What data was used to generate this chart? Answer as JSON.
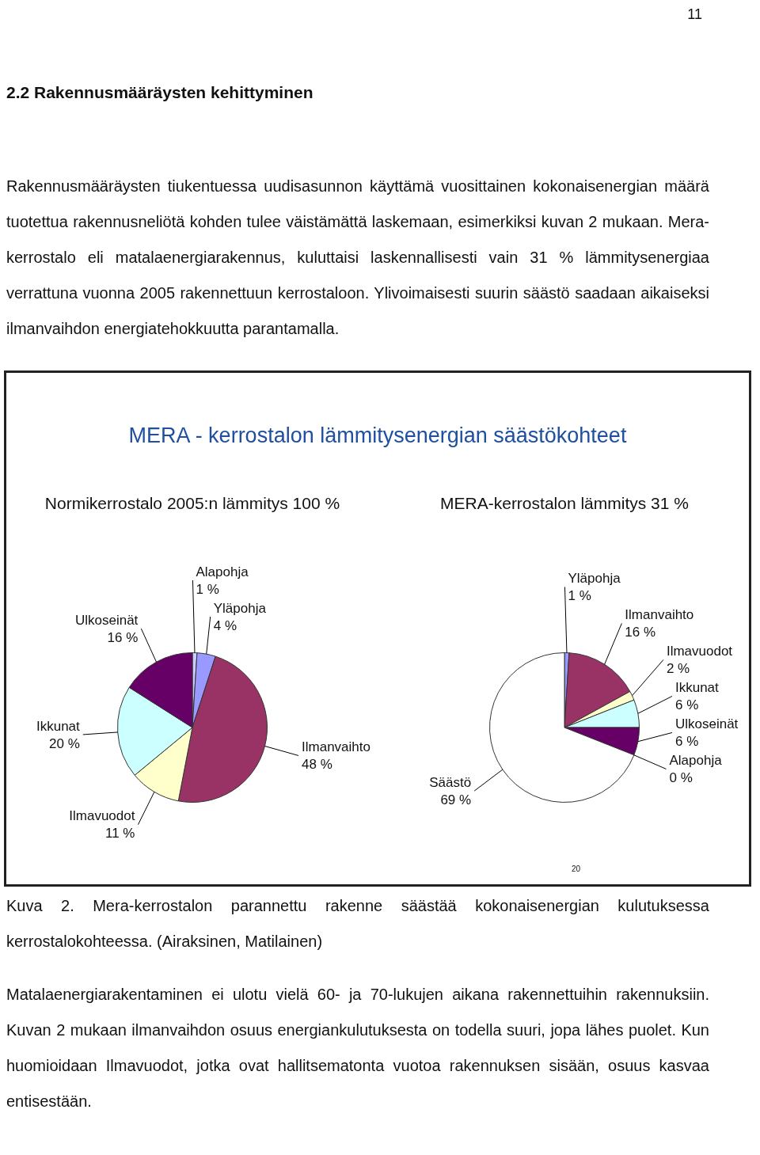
{
  "chart_data": [
    {
      "type": "pie",
      "title": "MERA - kerrostalon lämmitysenergian säästökohteet",
      "subtitle": "Normikerrostalo 2005:n lämmitys 100 %",
      "categories": [
        "Alapohja",
        "Yläpohja",
        "Ilmanvaihto",
        "Ilmavuodot",
        "Ikkunat",
        "Ulkoseinät"
      ],
      "values": [
        1,
        4,
        48,
        11,
        20,
        16
      ],
      "value_labels": [
        "1 %",
        "4 %",
        "48 %",
        "11 %",
        "20 %",
        "16 %"
      ],
      "colors": [
        "#ccccff",
        "#9999ff",
        "#993366",
        "#ffffcc",
        "#ccffff",
        "#660066"
      ],
      "annotations": [
        "11",
        "2.2 Rakennusmääräysten kehittyminen",
        "Rakennusmääräysten tiukentuessa uudisasunnon käyttämä vuosittainen kokonaisenergian määrä tuotettua rakennusneliötä kohden tulee väistämättä laskemaan, esimerkiksi kuvan 2 mukaan. Mera-kerrostalo eli matalaenergiarakennus, kuluttaisi laskennallisesti vain 31 % lämmitysenergiaa verrattuna vuonna 2005 rakennettuun kerrostaloon. Ylivoimaisesti suurin säästö saadaan aikaiseksi ilmanvaihdon energiatehokkuutta parantamalla.",
        "Kuva 2. Mera-kerrostalon parannettu rakenne säästää kokonaisenergian kulutuksessa kerrostalokohteessa. (Airaksinen, Matilainen)",
        "Matalaenergiarakentaminen ei ulotu vielä 60- ja 70-lukujen aikana rakennettuihin rakennuksiin. Kuvan 2 mukaan ilmanvaihdon osuus energiankulutuksesta on todella suuri, jopa lähes puolet. Kun huomioidaan Ilmavuodot, jotka ovat hallitsematonta vuotoa rakennuksen sisään, osuus kasvaa entisestään.",
        "20"
      ]
    },
    {
      "type": "pie",
      "title": "MERA-kerrostalon lämmitys 31 %",
      "categories": [
        "Yläpohja",
        "Ilmanvaihto",
        "Ilmavuodot",
        "Ikkunat",
        "Ulkoseinät",
        "Alapohja",
        "Säästö"
      ],
      "values": [
        1,
        16,
        2,
        6,
        6,
        0,
        69
      ],
      "value_labels": [
        "1 %",
        "16 %",
        "2 %",
        "6 %",
        "6 %",
        "0 %",
        "69 %"
      ],
      "colors": [
        "#9999ff",
        "#993366",
        "#ffffcc",
        "#ccffff",
        "#660066",
        "#ccccff",
        "#ffffff"
      ]
    }
  ]
}
